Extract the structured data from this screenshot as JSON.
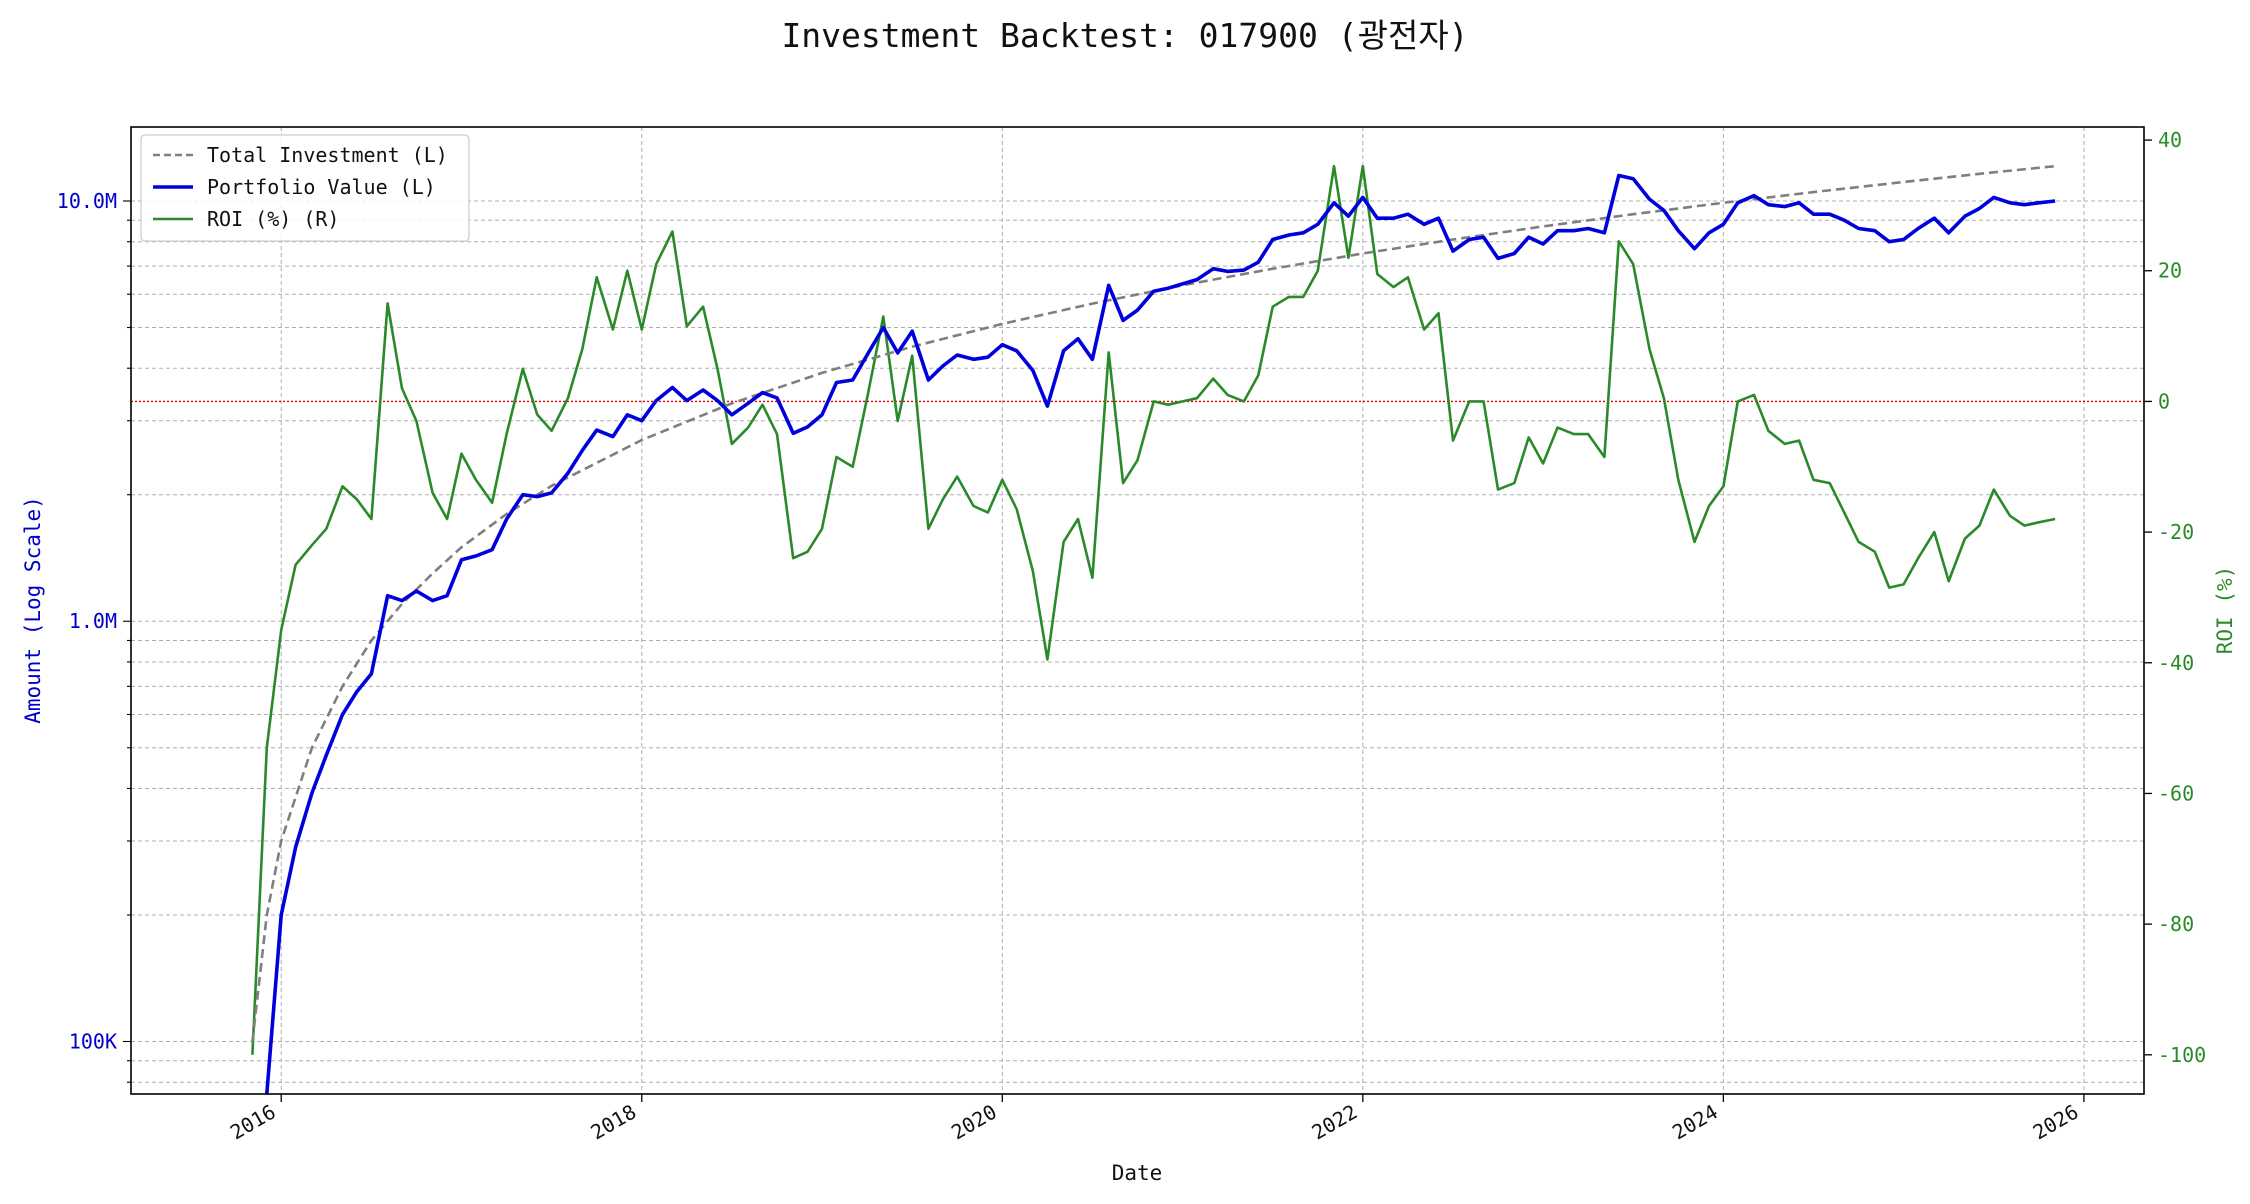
{
  "chart_data": {
    "type": "line",
    "title": "Investment Backtest: 017900 (광전자)",
    "xlabel": "Date",
    "ylabel_left": "Amount (Log Scale)",
    "ylabel_right": "ROI (%)",
    "y_left_scale": "log",
    "y_left_range": [
      75000,
      15000000
    ],
    "y_right_range": [
      -106,
      42
    ],
    "x_range": [
      "2015-03",
      "2026-05"
    ],
    "grid": true,
    "legend_position": "top-left",
    "zero_line_color": "#dd0000",
    "x_ticks": [
      {
        "label": "2016",
        "value": 2016.0
      },
      {
        "label": "2018",
        "value": 2018.0
      },
      {
        "label": "2020",
        "value": 2020.0
      },
      {
        "label": "2022",
        "value": 2022.0
      },
      {
        "label": "2024",
        "value": 2024.0
      },
      {
        "label": "2026",
        "value": 2026.0
      }
    ],
    "y_left_ticks": [
      {
        "label": "100K",
        "value": 100000
      },
      {
        "label": "1.0M",
        "value": 1000000
      },
      {
        "label": "10.0M",
        "value": 10000000
      }
    ],
    "y_right_ticks": [
      40,
      20,
      0,
      -20,
      -40,
      -60,
      -80,
      -100
    ],
    "series": [
      {
        "name": "Total Investment (L)",
        "axis": "left",
        "color": "#7f7f7f",
        "style": "dashed",
        "x": [
          2015.84,
          2015.92,
          2016.0,
          2016.17,
          2016.34,
          2016.5,
          2016.67,
          2016.84,
          2017.0,
          2017.25,
          2017.5,
          2018.0,
          2018.5,
          2019.0,
          2019.5,
          2020.0,
          2020.5,
          2021.0,
          2021.5,
          2022.0,
          2022.5,
          2023.0,
          2023.5,
          2024.0,
          2024.5,
          2025.0,
          2025.5,
          2025.84
        ],
        "y": [
          100000,
          200000,
          300000,
          500000,
          700000,
          900000,
          1100000,
          1300000,
          1500000,
          1800000,
          2100000,
          2700000,
          3300000,
          3900000,
          4500000,
          5100000,
          5700000,
          6300000,
          6900000,
          7500000,
          8100000,
          8700000,
          9300000,
          9900000,
          10500000,
          11100000,
          11700000,
          12100000
        ]
      },
      {
        "name": "Portfolio Value (L)",
        "axis": "left",
        "color": "#0000dd",
        "style": "solid",
        "x": [
          2015.92,
          2016.0,
          2016.08,
          2016.17,
          2016.25,
          2016.34,
          2016.42,
          2016.5,
          2016.59,
          2016.67,
          2016.75,
          2016.84,
          2016.92,
          2017.0,
          2017.08,
          2017.17,
          2017.25,
          2017.34,
          2017.42,
          2017.5,
          2017.59,
          2017.67,
          2017.75,
          2017.84,
          2017.92,
          2018.0,
          2018.08,
          2018.17,
          2018.25,
          2018.34,
          2018.42,
          2018.5,
          2018.59,
          2018.67,
          2018.75,
          2018.84,
          2018.92,
          2019.0,
          2019.08,
          2019.17,
          2019.25,
          2019.34,
          2019.42,
          2019.5,
          2019.59,
          2019.67,
          2019.75,
          2019.84,
          2019.92,
          2020.0,
          2020.08,
          2020.17,
          2020.25,
          2020.34,
          2020.42,
          2020.5,
          2020.59,
          2020.67,
          2020.75,
          2020.84,
          2020.92,
          2021.0,
          2021.08,
          2021.17,
          2021.25,
          2021.34,
          2021.42,
          2021.5,
          2021.59,
          2021.67,
          2021.75,
          2021.84,
          2021.92,
          2022.0,
          2022.08,
          2022.17,
          2022.25,
          2022.34,
          2022.42,
          2022.5,
          2022.59,
          2022.67,
          2022.75,
          2022.84,
          2022.92,
          2023.0,
          2023.08,
          2023.17,
          2023.25,
          2023.34,
          2023.42,
          2023.5,
          2023.59,
          2023.67,
          2023.75,
          2023.84,
          2023.92,
          2024.0,
          2024.08,
          2024.17,
          2024.25,
          2024.34,
          2024.42,
          2024.5,
          2024.59,
          2024.67,
          2024.75,
          2024.84,
          2024.92,
          2025.0,
          2025.08,
          2025.17,
          2025.25,
          2025.34,
          2025.42,
          2025.5,
          2025.59,
          2025.67,
          2025.75,
          2025.84
        ],
        "y": [
          75000,
          200000,
          290000,
          390000,
          480000,
          600000,
          680000,
          750000,
          1150000,
          1120000,
          1180000,
          1120000,
          1150000,
          1400000,
          1430000,
          1480000,
          1750000,
          2000000,
          1980000,
          2020000,
          2250000,
          2550000,
          2850000,
          2750000,
          3100000,
          3000000,
          3350000,
          3600000,
          3350000,
          3550000,
          3350000,
          3100000,
          3300000,
          3500000,
          3400000,
          2800000,
          2900000,
          3100000,
          3700000,
          3750000,
          4300000,
          5000000,
          4350000,
          4900000,
          3750000,
          4050000,
          4300000,
          4200000,
          4250000,
          4550000,
          4400000,
          3950000,
          3250000,
          4400000,
          4700000,
          4200000,
          6300000,
          5200000,
          5500000,
          6100000,
          6200000,
          6350000,
          6500000,
          6900000,
          6800000,
          6850000,
          7150000,
          8100000,
          8300000,
          8400000,
          8800000,
          9900000,
          9200000,
          10200000,
          9100000,
          9100000,
          9300000,
          8800000,
          9100000,
          7600000,
          8100000,
          8200000,
          7300000,
          7500000,
          8200000,
          7900000,
          8500000,
          8500000,
          8600000,
          8400000,
          11500000,
          11300000,
          10100000,
          9500000,
          8500000,
          7700000,
          8400000,
          8800000,
          9900000,
          10300000,
          9800000,
          9700000,
          9900000,
          9300000,
          9300000,
          9000000,
          8600000,
          8500000,
          8000000,
          8100000,
          8600000,
          9100000,
          8400000,
          9200000,
          9600000,
          10200000,
          9900000,
          9800000,
          9900000,
          10000000
        ]
      },
      {
        "name": "ROI (%) (R)",
        "axis": "right",
        "color": "#2a8a2a",
        "style": "solid",
        "x": [
          2015.84,
          2015.92,
          2016.0,
          2016.08,
          2016.17,
          2016.25,
          2016.34,
          2016.42,
          2016.5,
          2016.59,
          2016.67,
          2016.75,
          2016.84,
          2016.92,
          2017.0,
          2017.08,
          2017.17,
          2017.25,
          2017.34,
          2017.42,
          2017.5,
          2017.59,
          2017.67,
          2017.75,
          2017.84,
          2017.92,
          2018.0,
          2018.08,
          2018.17,
          2018.25,
          2018.34,
          2018.42,
          2018.5,
          2018.59,
          2018.67,
          2018.75,
          2018.84,
          2018.92,
          2019.0,
          2019.08,
          2019.17,
          2019.25,
          2019.34,
          2019.42,
          2019.5,
          2019.59,
          2019.67,
          2019.75,
          2019.84,
          2019.92,
          2020.0,
          2020.08,
          2020.17,
          2020.25,
          2020.34,
          2020.42,
          2020.5,
          2020.59,
          2020.67,
          2020.75,
          2020.84,
          2020.92,
          2021.0,
          2021.08,
          2021.17,
          2021.25,
          2021.34,
          2021.42,
          2021.5,
          2021.59,
          2021.67,
          2021.75,
          2021.84,
          2021.92,
          2022.0,
          2022.08,
          2022.17,
          2022.25,
          2022.34,
          2022.42,
          2022.5,
          2022.59,
          2022.67,
          2022.75,
          2022.84,
          2022.92,
          2023.0,
          2023.08,
          2023.17,
          2023.25,
          2023.34,
          2023.42,
          2023.5,
          2023.59,
          2023.67,
          2023.75,
          2023.84,
          2023.92,
          2024.0,
          2024.08,
          2024.17,
          2024.25,
          2024.34,
          2024.42,
          2024.5,
          2024.59,
          2024.67,
          2024.75,
          2024.84,
          2024.92,
          2025.0,
          2025.08,
          2025.17,
          2025.25,
          2025.34,
          2025.42,
          2025.5,
          2025.59,
          2025.67,
          2025.75,
          2025.84
        ],
        "y": [
          -100,
          -53,
          -35,
          -25,
          -22,
          -19.5,
          -13,
          -15,
          -18,
          15,
          2,
          -3,
          -14,
          -18,
          -8,
          -12,
          -15.5,
          -5,
          5,
          -2,
          -4.5,
          0.5,
          8,
          19,
          11,
          20,
          11,
          21,
          26,
          11.5,
          14.5,
          5,
          -6.5,
          -4,
          -0.5,
          -5,
          -24,
          -23,
          -19.5,
          -8.5,
          -10,
          0.5,
          13,
          -3,
          7,
          -19.5,
          -15,
          -11.5,
          -16,
          -17,
          -12,
          -16.5,
          -26,
          -39.5,
          -21.5,
          -18,
          -27,
          7.5,
          -12.5,
          -9,
          0,
          -0.5,
          0,
          0.5,
          3.5,
          1,
          0,
          4,
          14.5,
          16,
          16,
          20,
          36,
          22,
          36,
          19.5,
          17.5,
          19,
          11,
          13.5,
          -6,
          0,
          0,
          -13.5,
          -12.5,
          -5.5,
          -9.5,
          -4,
          -5,
          -5,
          -8.5,
          24.5,
          21,
          8,
          0.5,
          -12,
          -21.5,
          -16,
          -13,
          0,
          1,
          -4.5,
          -6.5,
          -6,
          -12,
          -12.5,
          -17,
          -21.5,
          -23,
          -28.5,
          -28,
          -24,
          -20,
          -27.5,
          -21,
          -19,
          -13.5,
          -17.5,
          -19,
          -18.5,
          -18
        ]
      }
    ]
  }
}
